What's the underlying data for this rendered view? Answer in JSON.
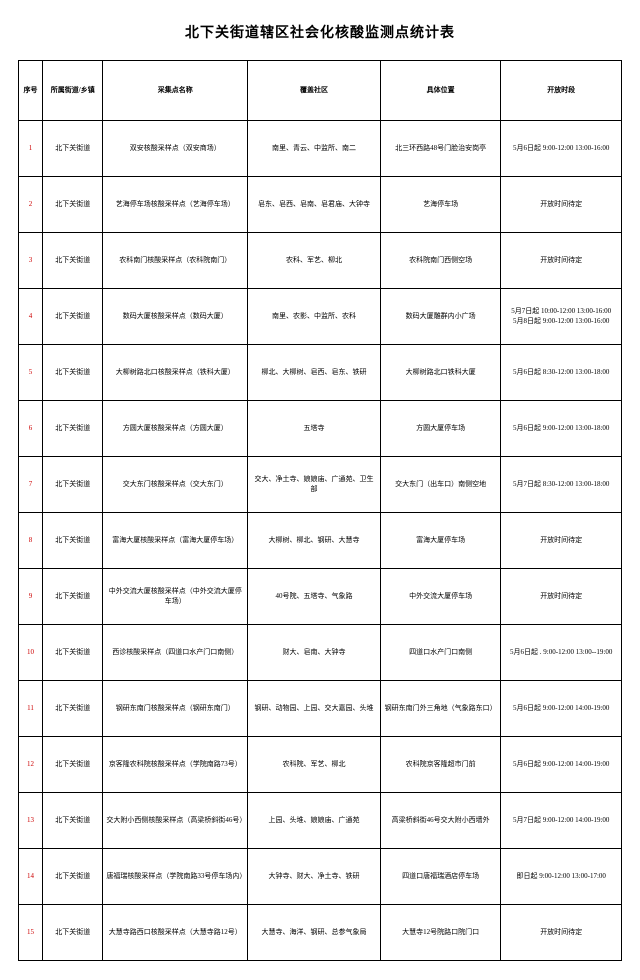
{
  "title": "北下关街道辖区社会化核酸监测点统计表",
  "columns": [
    "序号",
    "所属街道/乡镇",
    "采集点名称",
    "覆盖社区",
    "具体位置",
    "开放时段"
  ],
  "rows": [
    {
      "idx": "1",
      "dist": "北下关街道",
      "site": "双安核酸采样点（双安商场）",
      "comm": "南里、青云、中监所、南二",
      "loc": "北三环西路48号门脸治安岗亭",
      "time": "5月6日起  9:00-12:00  13:00-16:00"
    },
    {
      "idx": "2",
      "dist": "北下关街道",
      "site": "艺海停车场核酸采样点（艺海停车场）",
      "comm": "皂东、皂西、皂南、皂君庙、大钟寺",
      "loc": "艺海停车场",
      "time": "开放时间待定"
    },
    {
      "idx": "3",
      "dist": "北下关街道",
      "site": "农科南门核酸采样点（农科院南门）",
      "comm": "农科、军艺、柳北",
      "loc": "农科院南门西侧空场",
      "time": "开放时间待定"
    },
    {
      "idx": "4",
      "dist": "北下关街道",
      "site": "数码大厦核酸采样点（数码大厦）",
      "comm": "南里、农影、中监所、农科",
      "loc": "数码大厦雕群内小广场",
      "time": "5月7日起 10:00-12:00  13:00-16:00\n5月8日起  9:00-12:00   13:00-16:00"
    },
    {
      "idx": "5",
      "dist": "北下关街道",
      "site": "大柳树路北口核酸采样点（铁科大厦）",
      "comm": "柳北、大柳树、皂西、皂东、铁研",
      "loc": "大柳树路北口铁科大厦",
      "time": "5月6日起  8:30-12:00  13:00-18:00"
    },
    {
      "idx": "6",
      "dist": "北下关街道",
      "site": "方圆大厦核酸采样点（方圆大厦）",
      "comm": "五塔寺",
      "loc": "方圆大厦停车场",
      "time": "5月6日起  9:00-12:00  13:00-18:00"
    },
    {
      "idx": "7",
      "dist": "北下关街道",
      "site": "交大东门核酸采样点（交大东门）",
      "comm": "交大、净土寺、娘娘庙、广通苑、卫生部",
      "loc": "交大东门（出车口）南侧空地",
      "time": "5月7日起   8:30-12:00  13:00-18:00"
    },
    {
      "idx": "8",
      "dist": "北下关街道",
      "site": "富海大厦核酸采样点（富海大厦停车场）",
      "comm": "大柳树、柳北、钢研、大慧寺",
      "loc": "富海大厦停车场",
      "time": "开放时间待定"
    },
    {
      "idx": "9",
      "dist": "北下关街道",
      "site": "中外交流大厦核酸采样点（中外交流大厦停车场）",
      "comm": "40号院、五塔寺、气象路",
      "loc": "中外交流大厦停车场",
      "time": "开放时间待定"
    },
    {
      "idx": "10",
      "dist": "北下关街道",
      "site": "西诊核酸采样点（四道口水产门口南侧）",
      "comm": "财大、皂南、大钟寺",
      "loc": "四道口水产门口南侧",
      "time": "5月6日起 . 9:00-12:00 13:00--19:00"
    },
    {
      "idx": "11",
      "dist": "北下关街道",
      "site": "钢研东南门核酸采样点（钢研东南门）",
      "comm": "钢研、动物园、上园、交大嘉园、头堆",
      "loc": "钢研东南门外三角地（气象路东口）",
      "time": "5月6日起  9:00-12:00  14:00-19:00"
    },
    {
      "idx": "12",
      "dist": "北下关街道",
      "site": "京客隆农科院核酸采样点（学院南路73号）",
      "comm": "农科院、军艺、柳北",
      "loc": "农科院京客隆超市门前",
      "time": "5月6日起  9:00-12:00  14:00-19:00"
    },
    {
      "idx": "13",
      "dist": "北下关街道",
      "site": "交大附小西侧核酸采样点（高梁桥斜街46号）",
      "comm": "上园、头堆、娘娘庙、广通苑",
      "loc": "高梁桥斜街46号交大附小西墙外",
      "time": "5月7日起 9:00-12:00 14:00-19:00"
    },
    {
      "idx": "14",
      "dist": "北下关街道",
      "site": "唐福瑞核酸采样点（学院南路33号停车场内）",
      "comm": "大钟寺、财大、净土寺、铁研",
      "loc": "四道口唐福瑞酒店停车场",
      "time": "即日起 9:00-12:00  13:00-17:00"
    },
    {
      "idx": "15",
      "dist": "北下关街道",
      "site": "大慧寺路西口核酸采样点（大慧寺路12号）",
      "comm": "大慧寺、海洋、钢研、总参气象局",
      "loc": "大慧寺12号院路口院门口",
      "time": "开放时间待定"
    }
  ]
}
